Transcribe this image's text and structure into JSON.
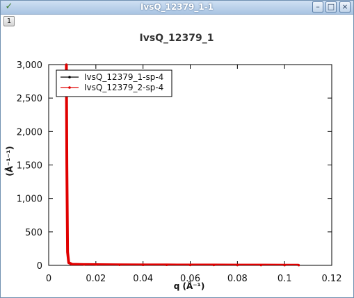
{
  "window": {
    "title": "IvsQ_12379_1-1",
    "tab_label": "1",
    "buttons": {
      "minimize": "–",
      "maximize": "□",
      "close": "×"
    }
  },
  "chart_data": {
    "type": "line",
    "title": "IvsQ_12379_1",
    "xlabel": "q (Å⁻¹)",
    "ylabel": "(Å⁻¹⁻¹)",
    "xlim": [
      0,
      0.12
    ],
    "ylim": [
      0,
      3000
    ],
    "x_ticks": [
      0,
      0.02,
      0.04,
      0.06,
      0.08,
      0.1,
      0.12
    ],
    "x_tick_labels": [
      "0",
      "0.02",
      "0.04",
      "0.06",
      "0.08",
      "0.1",
      "0.12"
    ],
    "y_ticks": [
      0,
      500,
      1000,
      1500,
      2000,
      2500,
      3000
    ],
    "y_tick_labels": [
      "0",
      "500",
      "1,000",
      "1,500",
      "2,000",
      "2,500",
      "3,000"
    ],
    "grid": false,
    "legend_position": "top-left",
    "series": [
      {
        "name": "IvsQ_12379_1-sp-4",
        "color": "#000000",
        "x": [
          0.0075,
          0.0077,
          0.008,
          0.0085,
          0.01,
          0.015,
          0.02,
          0.03,
          0.04,
          0.05,
          0.06,
          0.07,
          0.08,
          0.09,
          0.1,
          0.106
        ],
        "y": [
          3000,
          1500,
          200,
          40,
          15,
          12,
          10,
          8,
          7,
          6,
          5,
          5,
          4,
          4,
          3,
          3
        ]
      },
      {
        "name": "IvsQ_12379_2-sp-4",
        "color": "#e00000",
        "x": [
          0.0075,
          0.0077,
          0.008,
          0.0085,
          0.01,
          0.015,
          0.02,
          0.03,
          0.04,
          0.05,
          0.06,
          0.07,
          0.08,
          0.09,
          0.1,
          0.106
        ],
        "y": [
          3000,
          1500,
          200,
          40,
          15,
          12,
          10,
          8,
          7,
          6,
          5,
          5,
          4,
          4,
          3,
          3
        ]
      }
    ]
  }
}
